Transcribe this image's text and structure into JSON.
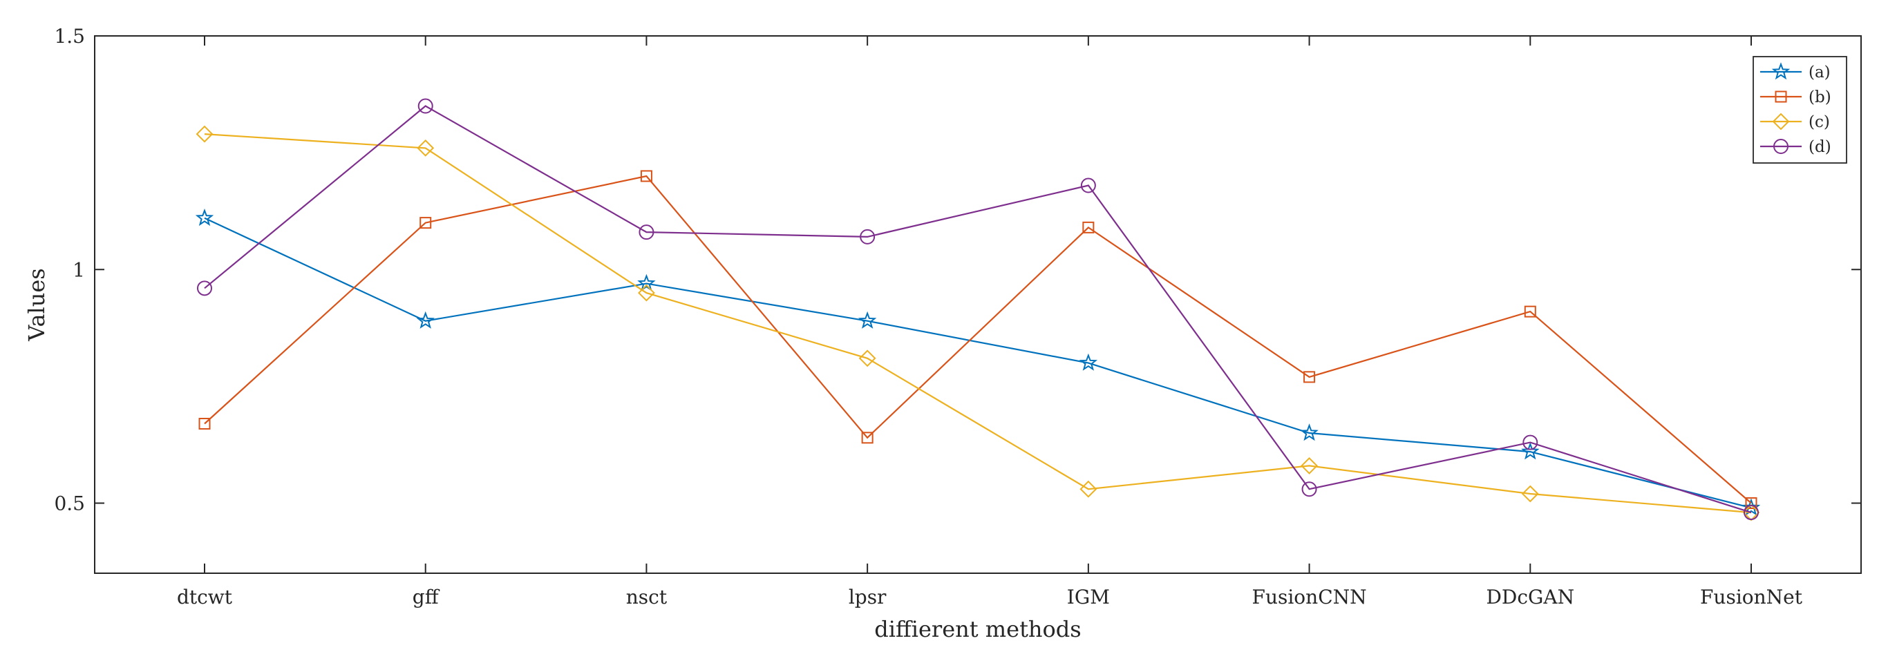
{
  "chart_data": {
    "type": "line",
    "title": "",
    "xlabel": "diffierent methods",
    "ylabel": "Values",
    "categories": [
      "dtcwt",
      "gff",
      "nsct",
      "lpsr",
      "IGM",
      "FusionCNN",
      "DDcGAN",
      "FusionNet"
    ],
    "ylim": [
      0.35,
      1.5
    ],
    "yticks": [
      0.5,
      1,
      1.5
    ],
    "ytick_labels": [
      "0.5",
      "1",
      "1.5"
    ],
    "grid": false,
    "legend_position": "top-right",
    "series": [
      {
        "name": "(a)",
        "marker": "star",
        "color": "#0072BD",
        "values": [
          1.11,
          0.89,
          0.97,
          0.89,
          0.8,
          0.65,
          0.61,
          0.49
        ]
      },
      {
        "name": "(b)",
        "marker": "square",
        "color": "#D95319",
        "values": [
          0.67,
          1.1,
          1.2,
          0.64,
          1.09,
          0.77,
          0.91,
          0.5
        ]
      },
      {
        "name": "(c)",
        "marker": "diamond",
        "color": "#EDB120",
        "values": [
          1.29,
          1.26,
          0.95,
          0.81,
          0.53,
          0.58,
          0.52,
          0.48
        ]
      },
      {
        "name": "(d)",
        "marker": "circle",
        "color": "#7E2F8E",
        "values": [
          0.96,
          1.35,
          1.08,
          1.07,
          1.18,
          0.53,
          0.63,
          0.48
        ]
      }
    ]
  }
}
